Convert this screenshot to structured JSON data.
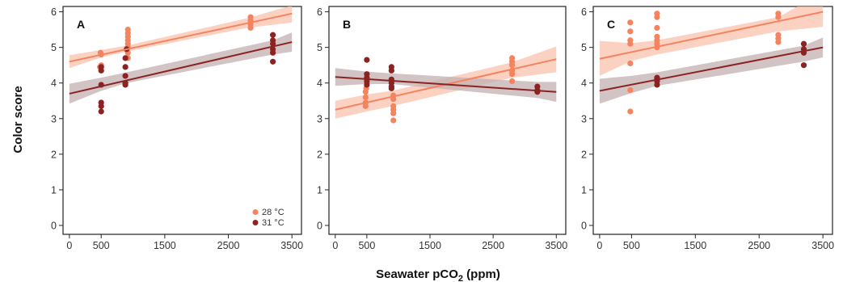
{
  "figure": {
    "ylabel": "Color score",
    "xlabel_main": "Seawater pCO",
    "xlabel_sub": "2",
    "xlabel_tail": " (ppm)"
  },
  "colors": {
    "28C": "#f4845f",
    "31C": "#8b2323",
    "band28": "#f9c2ad",
    "band31": "#c3b0b1"
  },
  "legend": {
    "placement": "bottom-right of panel A",
    "entries": [
      {
        "label": "28 °C",
        "color_key": "28C"
      },
      {
        "label": "31 °C",
        "color_key": "31C"
      }
    ]
  },
  "chart_data": [
    {
      "type": "scatter",
      "panel": "A",
      "xlim": [
        -100,
        3650
      ],
      "ylim": [
        -0.25,
        6.15
      ],
      "xticks": [
        "0",
        "500",
        "1500",
        "2500",
        "3500"
      ],
      "xtick_values": [
        0,
        500,
        1500,
        2500,
        3500
      ],
      "yticks": [
        "0",
        "1",
        "2",
        "3",
        "4",
        "5",
        "6"
      ],
      "ytick_values": [
        0,
        1,
        2,
        3,
        4,
        5,
        6
      ],
      "series": [
        {
          "name": "28 °C",
          "color_key": "28C",
          "points": [
            [
              490,
              4.85
            ],
            [
              500,
              4.8
            ],
            [
              480,
              4.45
            ],
            [
              500,
              4.5
            ],
            [
              920,
              4.7
            ],
            [
              920,
              4.85
            ],
            [
              920,
              5.0
            ],
            [
              920,
              5.1
            ],
            [
              920,
              5.2
            ],
            [
              920,
              5.3
            ],
            [
              920,
              5.4
            ],
            [
              920,
              5.5
            ],
            [
              2850,
              5.55
            ],
            [
              2850,
              5.65
            ],
            [
              2850,
              5.75
            ],
            [
              2850,
              5.85
            ]
          ],
          "fit": {
            "x": [
              0,
              3500
            ],
            "y": [
              4.6,
              5.95
            ]
          },
          "ci_band": {
            "x": [
              0,
              500,
              900,
              2800,
              3500
            ],
            "lower": [
              4.42,
              4.72,
              4.88,
              5.55,
              5.7
            ],
            "upper": [
              4.78,
              4.93,
              5.05,
              5.82,
              6.18
            ]
          }
        },
        {
          "name": "31 °C",
          "color_key": "31C",
          "points": [
            [
              500,
              4.45
            ],
            [
              500,
              4.35
            ],
            [
              500,
              3.95
            ],
            [
              500,
              3.45
            ],
            [
              500,
              3.35
            ],
            [
              500,
              3.2
            ],
            [
              880,
              4.7
            ],
            [
              880,
              4.45
            ],
            [
              880,
              4.2
            ],
            [
              880,
              4.0
            ],
            [
              880,
              3.95
            ],
            [
              900,
              4.95
            ],
            [
              3200,
              5.35
            ],
            [
              3200,
              5.2
            ],
            [
              3200,
              5.1
            ],
            [
              3200,
              4.95
            ],
            [
              3200,
              4.85
            ],
            [
              3200,
              4.6
            ]
          ],
          "fit": {
            "x": [
              0,
              3500
            ],
            "y": [
              3.7,
              5.15
            ]
          },
          "ci_band": {
            "x": [
              0,
              500,
              900,
              3200,
              3500
            ],
            "lower": [
              3.42,
              3.78,
              4.0,
              4.8,
              4.88
            ],
            "upper": [
              3.98,
              4.15,
              4.3,
              5.2,
              5.42
            ]
          }
        }
      ]
    },
    {
      "type": "scatter",
      "panel": "B",
      "xlim": [
        -100,
        3650
      ],
      "ylim": [
        -0.25,
        6.15
      ],
      "xticks": [
        "0",
        "500",
        "1500",
        "2500",
        "3500"
      ],
      "xtick_values": [
        0,
        500,
        1500,
        2500,
        3500
      ],
      "yticks": [
        "0",
        "1",
        "2",
        "3",
        "4",
        "5",
        "6"
      ],
      "ytick_values": [
        0,
        1,
        2,
        3,
        4,
        5,
        6
      ],
      "series": [
        {
          "name": "28 °C",
          "color_key": "28C",
          "points": [
            [
              480,
              3.35
            ],
            [
              480,
              3.45
            ],
            [
              480,
              3.6
            ],
            [
              480,
              3.75
            ],
            [
              490,
              3.85
            ],
            [
              500,
              4.0
            ],
            [
              920,
              2.95
            ],
            [
              920,
              3.15
            ],
            [
              920,
              3.25
            ],
            [
              920,
              3.35
            ],
            [
              920,
              3.55
            ],
            [
              920,
              3.65
            ],
            [
              2800,
              4.05
            ],
            [
              2800,
              4.25
            ],
            [
              2800,
              4.35
            ],
            [
              2800,
              4.5
            ],
            [
              2800,
              4.6
            ],
            [
              2800,
              4.7
            ]
          ],
          "fit": {
            "x": [
              0,
              3500
            ],
            "y": [
              3.25,
              4.67
            ]
          },
          "ci_band": {
            "x": [
              0,
              500,
              900,
              2800,
              3500
            ],
            "lower": [
              3.0,
              3.2,
              3.35,
              4.15,
              4.3
            ],
            "upper": [
              3.5,
              3.68,
              3.78,
              4.58,
              5.03
            ]
          }
        },
        {
          "name": "31 °C",
          "color_key": "31C",
          "points": [
            [
              500,
              4.65
            ],
            [
              500,
              4.25
            ],
            [
              500,
              4.15
            ],
            [
              500,
              4.05
            ],
            [
              500,
              3.95
            ],
            [
              890,
              4.45
            ],
            [
              890,
              4.35
            ],
            [
              890,
              4.1
            ],
            [
              890,
              4.0
            ],
            [
              890,
              3.9
            ],
            [
              890,
              3.85
            ],
            [
              3200,
              3.9
            ],
            [
              3200,
              3.8
            ],
            [
              3200,
              3.75
            ]
          ],
          "fit": {
            "x": [
              0,
              3500
            ],
            "y": [
              4.17,
              3.75
            ]
          },
          "ci_band": {
            "x": [
              0,
              500,
              900,
              3200,
              3500
            ],
            "lower": [
              3.92,
              3.97,
              3.97,
              3.58,
              3.47
            ],
            "upper": [
              4.42,
              4.32,
              4.27,
              4.03,
              4.03
            ]
          }
        }
      ]
    },
    {
      "type": "scatter",
      "panel": "C",
      "xlim": [
        -100,
        3650
      ],
      "ylim": [
        -0.25,
        6.15
      ],
      "xticks": [
        "0",
        "500",
        "1500",
        "2500",
        "3500"
      ],
      "xtick_values": [
        0,
        500,
        1500,
        2500,
        3500
      ],
      "yticks": [
        "0",
        "1",
        "2",
        "3",
        "4",
        "5",
        "6"
      ],
      "ytick_values": [
        0,
        1,
        2,
        3,
        4,
        5,
        6
      ],
      "series": [
        {
          "name": "28 °C",
          "color_key": "28C",
          "points": [
            [
              480,
              5.7
            ],
            [
              480,
              5.45
            ],
            [
              480,
              5.2
            ],
            [
              480,
              5.1
            ],
            [
              480,
              4.55
            ],
            [
              480,
              3.8
            ],
            [
              480,
              3.2
            ],
            [
              900,
              5.95
            ],
            [
              900,
              5.85
            ],
            [
              900,
              5.55
            ],
            [
              900,
              5.3
            ],
            [
              900,
              5.2
            ],
            [
              900,
              5.1
            ],
            [
              900,
              5.0
            ],
            [
              2800,
              5.95
            ],
            [
              2800,
              5.85
            ],
            [
              2800,
              5.35
            ],
            [
              2800,
              5.25
            ],
            [
              2800,
              5.15
            ]
          ],
          "fit": {
            "x": [
              0,
              3500
            ],
            "y": [
              4.68,
              6.0
            ]
          },
          "ci_band": {
            "x": [
              0,
              500,
              900,
              2800,
              3500
            ],
            "lower": [
              4.2,
              4.62,
              4.8,
              5.45,
              5.58
            ],
            "upper": [
              5.18,
              5.12,
              5.2,
              5.85,
              6.55
            ]
          }
        },
        {
          "name": "31 °C",
          "color_key": "31C",
          "points": [
            [
              900,
              4.15
            ],
            [
              900,
              4.1
            ],
            [
              900,
              4.05
            ],
            [
              900,
              3.95
            ],
            [
              3200,
              5.1
            ],
            [
              3200,
              4.95
            ],
            [
              3200,
              4.85
            ],
            [
              3200,
              4.5
            ]
          ],
          "fit": {
            "x": [
              0,
              3500
            ],
            "y": [
              3.78,
              5.0
            ]
          },
          "ci_band": {
            "x": [
              0,
              500,
              900,
              3200,
              3500
            ],
            "lower": [
              3.42,
              3.72,
              3.92,
              4.6,
              4.72
            ],
            "upper": [
              4.12,
              4.2,
              4.3,
              5.05,
              5.28
            ]
          }
        }
      ]
    }
  ]
}
